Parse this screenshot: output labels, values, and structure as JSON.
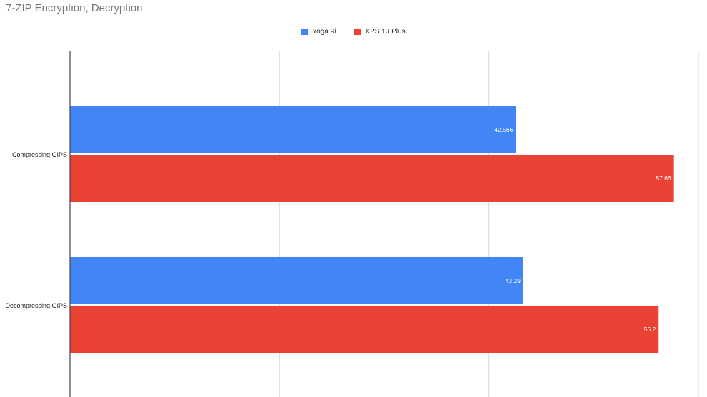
{
  "chart_data": {
    "type": "bar",
    "orientation": "horizontal",
    "title": "7-ZIP Encryption, Decryption",
    "categories": [
      "Compressing GIPS",
      "Decompressing GIPS"
    ],
    "series": [
      {
        "name": "Yoga 9i",
        "values": [
          42.566,
          43.29
        ],
        "color": "#4285f4"
      },
      {
        "name": "XPS 13 Plus",
        "values": [
          57.66,
          56.2
        ],
        "color": "#ea4335"
      }
    ],
    "xlim": [
      0,
      60
    ],
    "x_gridlines": [
      0,
      20,
      40,
      60
    ],
    "legend_position": "top-center",
    "grid": true
  }
}
